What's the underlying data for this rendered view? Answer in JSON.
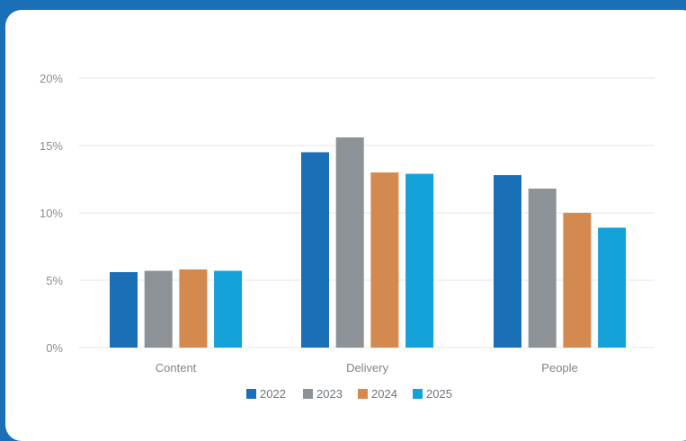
{
  "chart_data": {
    "type": "bar",
    "title": "",
    "xlabel": "",
    "ylabel": "",
    "categories": [
      "Content",
      "Delivery",
      "People"
    ],
    "series": [
      {
        "name": "2022",
        "color": "#1a6fb7",
        "values": [
          5.6,
          14.5,
          12.8
        ]
      },
      {
        "name": "2023",
        "color": "#8c9295",
        "values": [
          5.7,
          15.6,
          11.8
        ]
      },
      {
        "name": "2024",
        "color": "#d4894e",
        "values": [
          5.8,
          13.0,
          10.0
        ]
      },
      {
        "name": "2025",
        "color": "#14a0d9",
        "values": [
          5.7,
          12.9,
          8.9
        ]
      }
    ],
    "ylim": [
      0,
      20
    ],
    "yticks": [
      0,
      5,
      10,
      15,
      20
    ],
    "ytick_labels": [
      "0%",
      "5%",
      "10%",
      "15%",
      "20%"
    ],
    "grid": true,
    "legend": "bottom-center",
    "gridline_color": "#e3e5e7"
  }
}
